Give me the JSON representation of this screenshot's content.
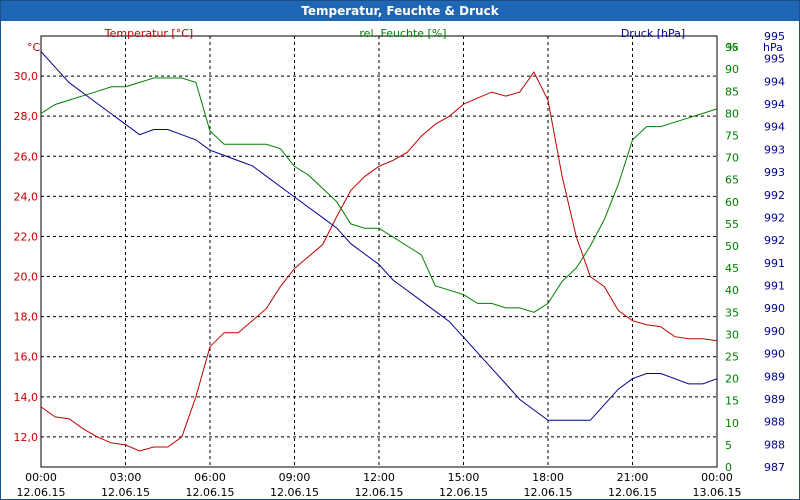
{
  "window": {
    "title": "Temperatur, Feuchte & Druck"
  },
  "chart_data": {
    "type": "line",
    "title": "Temperatur, Feuchte & Druck",
    "grid": true,
    "x_ticks": [
      {
        "time": "00:00",
        "date": "12.06.15"
      },
      {
        "time": "03:00",
        "date": "12.06.15"
      },
      {
        "time": "06:00",
        "date": "12.06.15"
      },
      {
        "time": "09:00",
        "date": "12.06.15"
      },
      {
        "time": "12:00",
        "date": "12.06.15"
      },
      {
        "time": "15:00",
        "date": "12.06.15"
      },
      {
        "time": "18:00",
        "date": "12.06.15"
      },
      {
        "time": "21:00",
        "date": "12.06.15"
      },
      {
        "time": "00:00",
        "date": "13.06.15"
      }
    ],
    "axes": {
      "temperature": {
        "label": "Temperatur [°C]",
        "unit": "°C",
        "range": [
          10.5,
          32.0
        ],
        "ticks": [
          "12,0",
          "14,0",
          "16,0",
          "18,0",
          "20,0",
          "22,0",
          "24,0",
          "26,0",
          "28,0",
          "30,0"
        ],
        "color": "#c00000"
      },
      "humidity": {
        "label": "rel. Feuchte [%]",
        "unit": "%",
        "range": [
          0,
          97.5
        ],
        "ticks": [
          "0",
          "5",
          "10",
          "15",
          "20",
          "25",
          "30",
          "35",
          "40",
          "45",
          "50",
          "55",
          "60",
          "65",
          "70",
          "75",
          "80",
          "85",
          "90",
          "95"
        ],
        "color": "#008000"
      },
      "pressure": {
        "label": "Druck [hPa]",
        "unit": "hPa",
        "range": [
          987.0,
          995.3
        ],
        "ticks": [
          "987",
          "988",
          "988",
          "989",
          "989",
          "990",
          "990",
          "990",
          "991",
          "991",
          "992",
          "992",
          "992",
          "993",
          "993",
          "994",
          "994",
          "994",
          "995",
          "995"
        ],
        "color": "#000090"
      }
    },
    "series": [
      {
        "name": "Temperatur [°C]",
        "axis": "temperature",
        "color": "#c00000",
        "x": [
          0,
          0.5,
          1,
          1.5,
          2,
          2.5,
          3,
          3.5,
          4,
          4.5,
          5,
          5.5,
          6,
          6.5,
          7,
          7.5,
          8,
          8.5,
          9,
          9.5,
          10,
          10.5,
          11,
          11.5,
          12,
          12.5,
          13,
          13.5,
          14,
          14.5,
          15,
          15.5,
          16,
          16.5,
          17,
          17.5,
          18,
          18.5,
          19,
          19.5,
          20,
          20.5,
          21,
          21.5,
          22,
          22.5,
          23,
          23.5,
          24
        ],
        "values": [
          13.5,
          13.0,
          12.9,
          12.4,
          12.0,
          11.7,
          11.6,
          11.3,
          11.5,
          11.5,
          12.0,
          14.0,
          16.5,
          17.2,
          17.2,
          17.8,
          18.4,
          19.5,
          20.4,
          21.0,
          21.6,
          23.0,
          24.3,
          25.0,
          25.5,
          25.8,
          26.2,
          27.0,
          27.6,
          28.0,
          28.6,
          28.9,
          29.2,
          29.0,
          29.2,
          30.2,
          28.8,
          25.0,
          22.0,
          20.0,
          19.5,
          18.3,
          17.8,
          17.6,
          17.5,
          17.0,
          16.9,
          16.9,
          16.8
        ]
      },
      {
        "name": "rel. Feuchte [%]",
        "axis": "humidity",
        "color": "#008000",
        "x": [
          0,
          0.5,
          1,
          1.5,
          2,
          2.5,
          3,
          3.5,
          4,
          4.5,
          5,
          5.5,
          6,
          6.5,
          7,
          7.5,
          8,
          8.5,
          9,
          9.5,
          10,
          10.5,
          11,
          11.5,
          12,
          12.5,
          13,
          13.5,
          14,
          14.5,
          15,
          15.5,
          16,
          16.5,
          17,
          17.5,
          18,
          18.5,
          19,
          19.5,
          20,
          20.5,
          21,
          21.5,
          22,
          22.5,
          23,
          23.5,
          24
        ],
        "values": [
          80,
          82,
          83,
          84,
          85,
          86,
          86,
          87,
          88,
          88,
          88,
          87,
          76,
          73,
          73,
          73,
          73,
          72,
          68,
          66,
          63,
          60,
          55,
          54,
          54,
          52,
          50,
          48,
          41,
          40,
          39,
          37,
          37,
          36,
          36,
          35,
          37,
          42,
          45,
          50,
          56,
          64,
          74,
          77,
          77,
          78,
          79,
          80,
          81
        ]
      },
      {
        "name": "Druck [hPa]",
        "axis": "pressure",
        "color": "#000090",
        "x": [
          0,
          0.5,
          1,
          1.5,
          2,
          2.5,
          3,
          3.5,
          4,
          4.5,
          5,
          5.5,
          6,
          6.5,
          7,
          7.5,
          8,
          8.5,
          9,
          9.5,
          10,
          10.5,
          11,
          11.5,
          12,
          12.5,
          13,
          13.5,
          14,
          14.5,
          15,
          15.5,
          16,
          16.5,
          17,
          17.5,
          18,
          18.5,
          19,
          19.5,
          20,
          20.5,
          21,
          21.5,
          22,
          22.5,
          23,
          23.5,
          24
        ],
        "values": [
          995.0,
          994.7,
          994.4,
          994.2,
          994.0,
          993.8,
          993.6,
          993.4,
          993.5,
          993.5,
          993.4,
          993.3,
          993.1,
          993.0,
          992.9,
          992.8,
          992.6,
          992.4,
          992.2,
          992.0,
          991.8,
          991.6,
          991.3,
          991.1,
          990.9,
          990.6,
          990.4,
          990.2,
          990.0,
          989.8,
          989.5,
          989.2,
          988.9,
          988.6,
          988.3,
          988.1,
          987.9,
          987.9,
          987.9,
          987.9,
          988.2,
          988.5,
          988.7,
          988.8,
          988.8,
          988.7,
          988.6,
          988.6,
          988.7
        ]
      }
    ]
  }
}
